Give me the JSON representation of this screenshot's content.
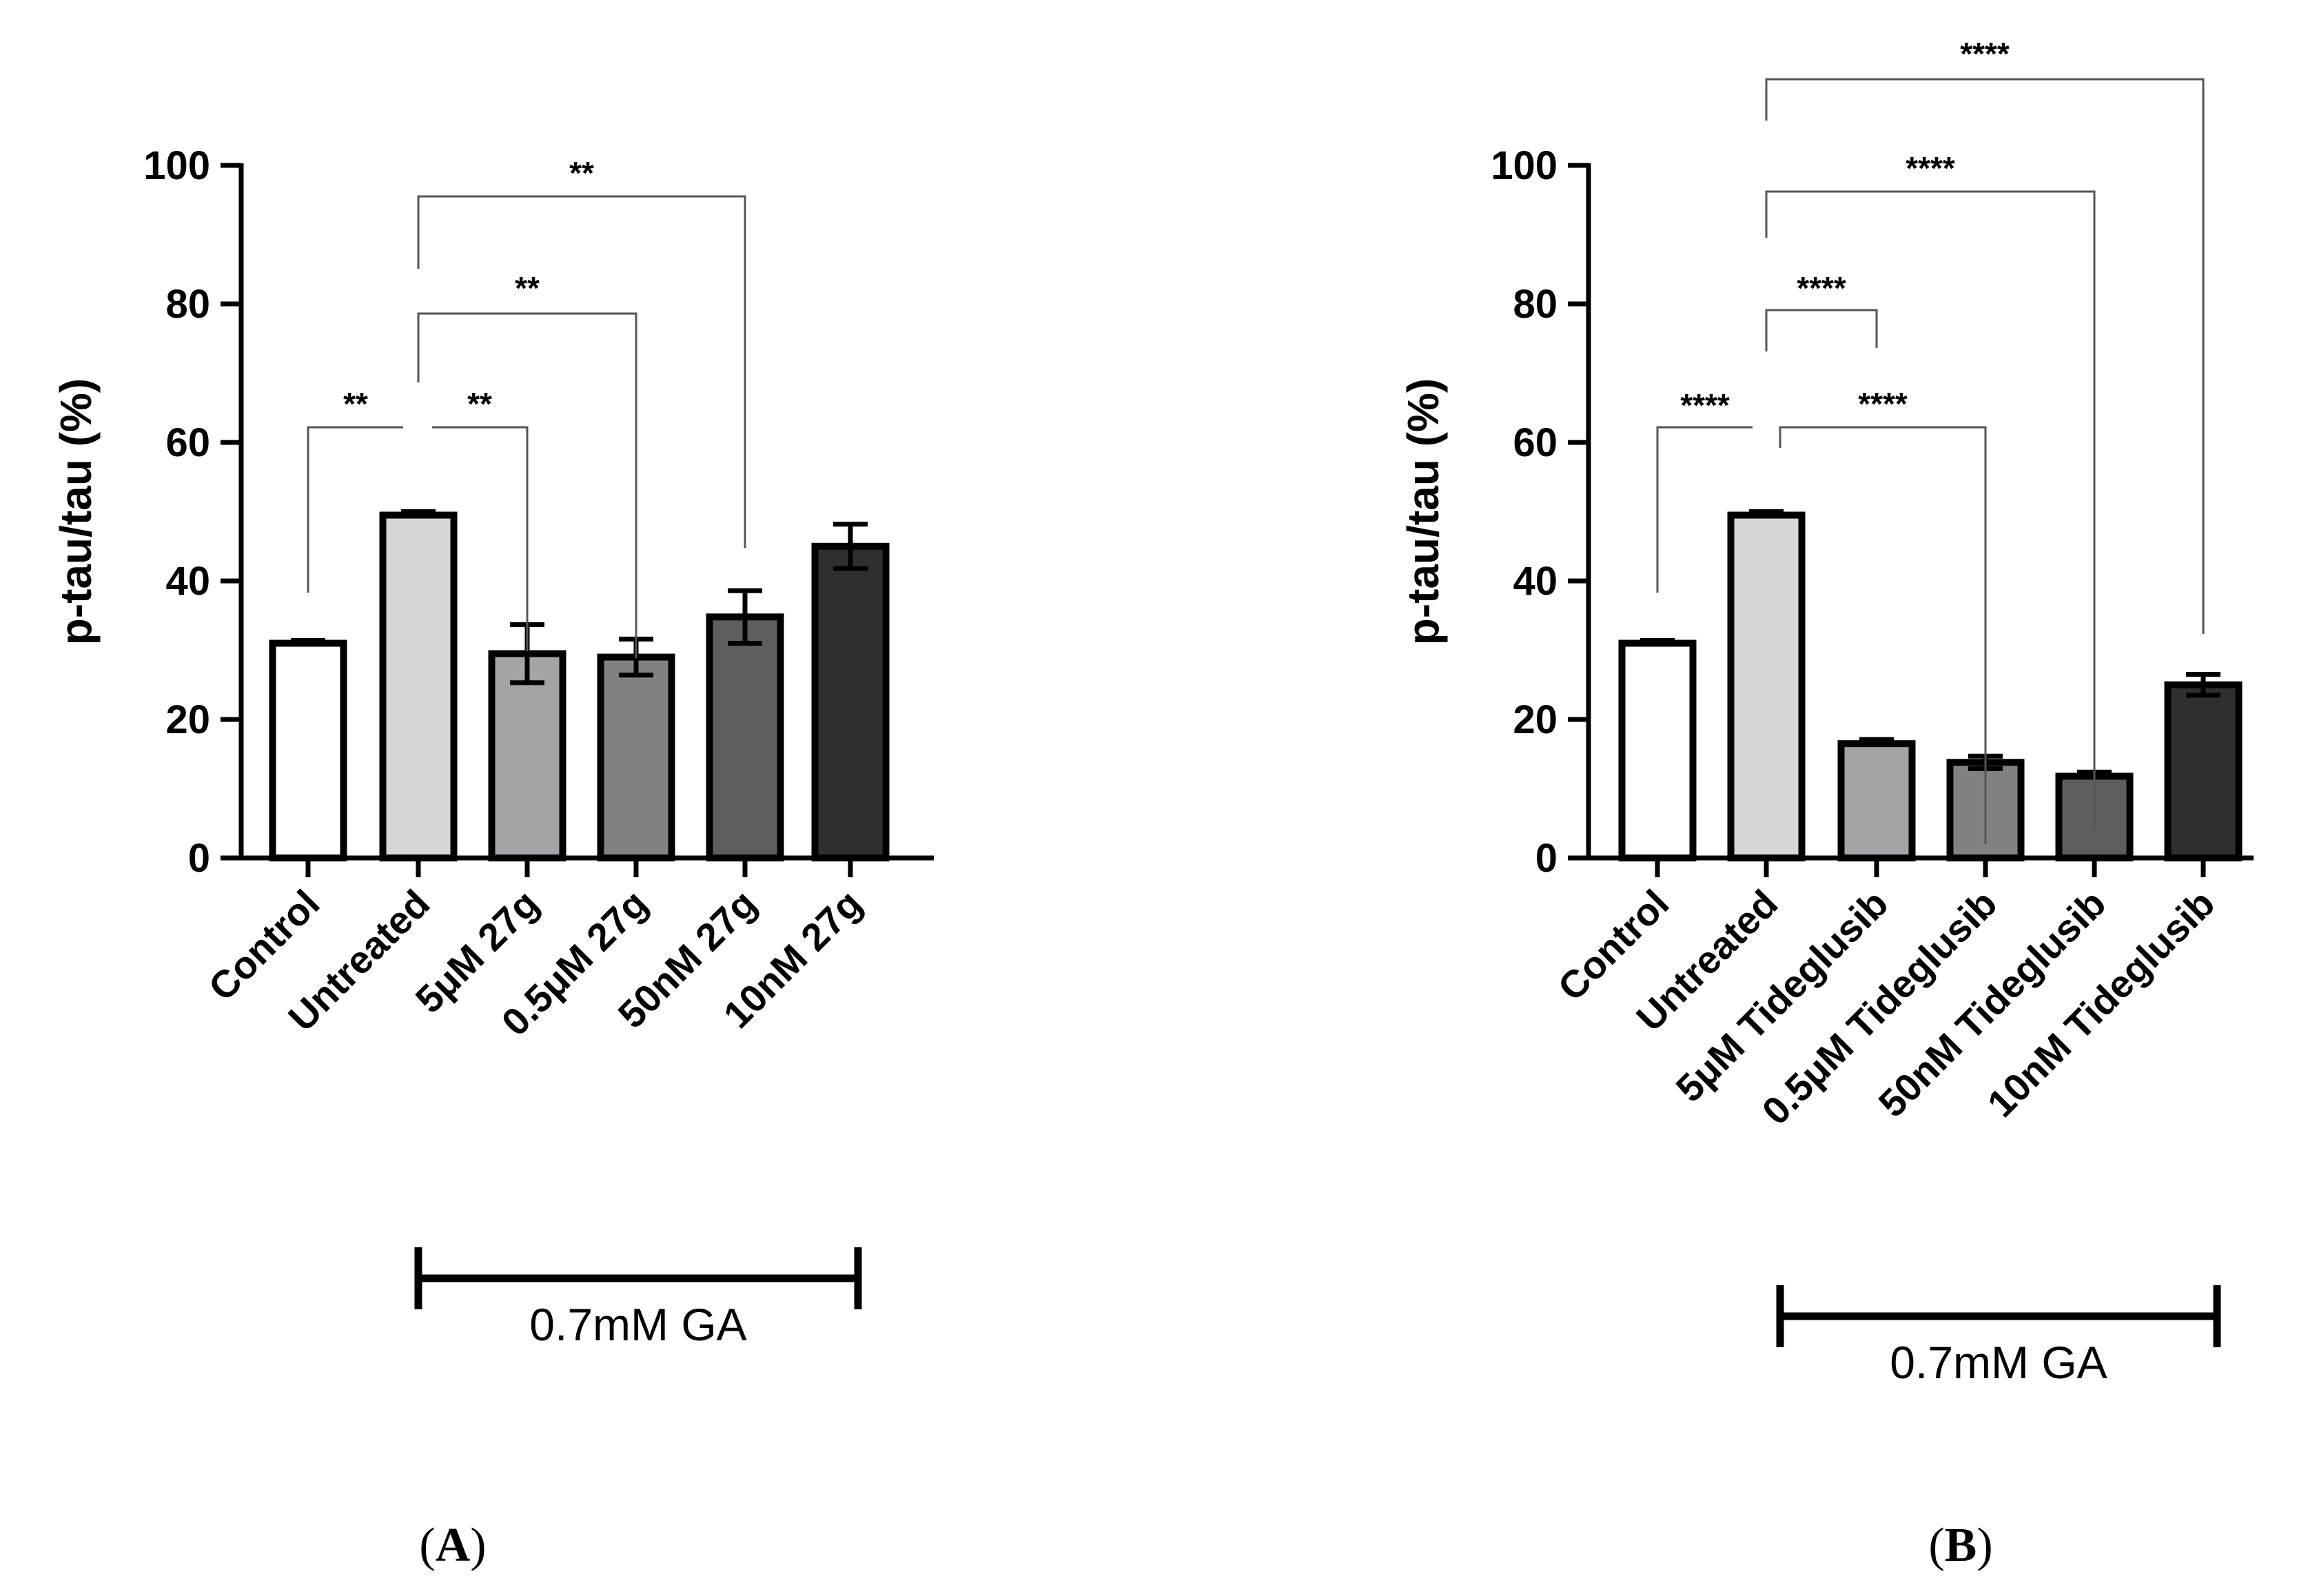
{
  "chart_data": [
    {
      "type": "bar",
      "panel_label": "A",
      "ylabel": "p-tau/tau (%)",
      "ylim": [
        0,
        100
      ],
      "yticks": [
        "0",
        "20",
        "40",
        "60",
        "80",
        "100"
      ],
      "categories": [
        "Control",
        "Untreated",
        "5μM 27g",
        "0.5μM 27g",
        "50nM 27g",
        "10nM 27g"
      ],
      "values": [
        31,
        49.5,
        29.5,
        29,
        34.8,
        45
      ],
      "errors": [
        0.4,
        0.5,
        4.2,
        2.6,
        3.8,
        3.2
      ],
      "colors": [
        "#ffffff",
        "#d6d6d6",
        "#a4a4a8",
        "#828282",
        "#5e5e5e",
        "#2f2f2f"
      ],
      "significance": [
        {
          "from": 0,
          "to": 1,
          "label": "**"
        },
        {
          "from": 1,
          "to": 2,
          "label": "**"
        },
        {
          "from": 1,
          "to": 3,
          "label": "**"
        },
        {
          "from": 1,
          "to": 4,
          "label": "**"
        }
      ],
      "treatment_bracket": {
        "label": "0.7mM  GA",
        "from": 1,
        "to": 5
      }
    },
    {
      "type": "bar",
      "panel_label": "B",
      "ylabel": "p-tau/tau (%)",
      "ylim": [
        0,
        100
      ],
      "yticks": [
        "0",
        "20",
        "40",
        "60",
        "80",
        "100"
      ],
      "categories": [
        "Control",
        "Untreated",
        "5μM Tideglusib",
        "0.5μM Tideglusib",
        "50nM Tideglusib",
        "10nM Tideglusib"
      ],
      "values": [
        31,
        49.5,
        16.5,
        13.8,
        11.8,
        25
      ],
      "errors": [
        0.4,
        0.5,
        0.6,
        0.9,
        0.6,
        1.5
      ],
      "colors": [
        "#ffffff",
        "#d6d6d6",
        "#a4a4a8",
        "#828282",
        "#5e5e5e",
        "#2f2f2f"
      ],
      "significance": [
        {
          "from": 0,
          "to": 1,
          "label": "****"
        },
        {
          "from": 1,
          "to": 2,
          "label": "****"
        },
        {
          "from": 1,
          "to": 3,
          "label": "****"
        },
        {
          "from": 1,
          "to": 4,
          "label": "****"
        },
        {
          "from": 1,
          "to": 5,
          "label": "****"
        }
      ],
      "treatment_bracket": {
        "label": "0.7mM  GA",
        "from": 1,
        "to": 5
      }
    }
  ]
}
